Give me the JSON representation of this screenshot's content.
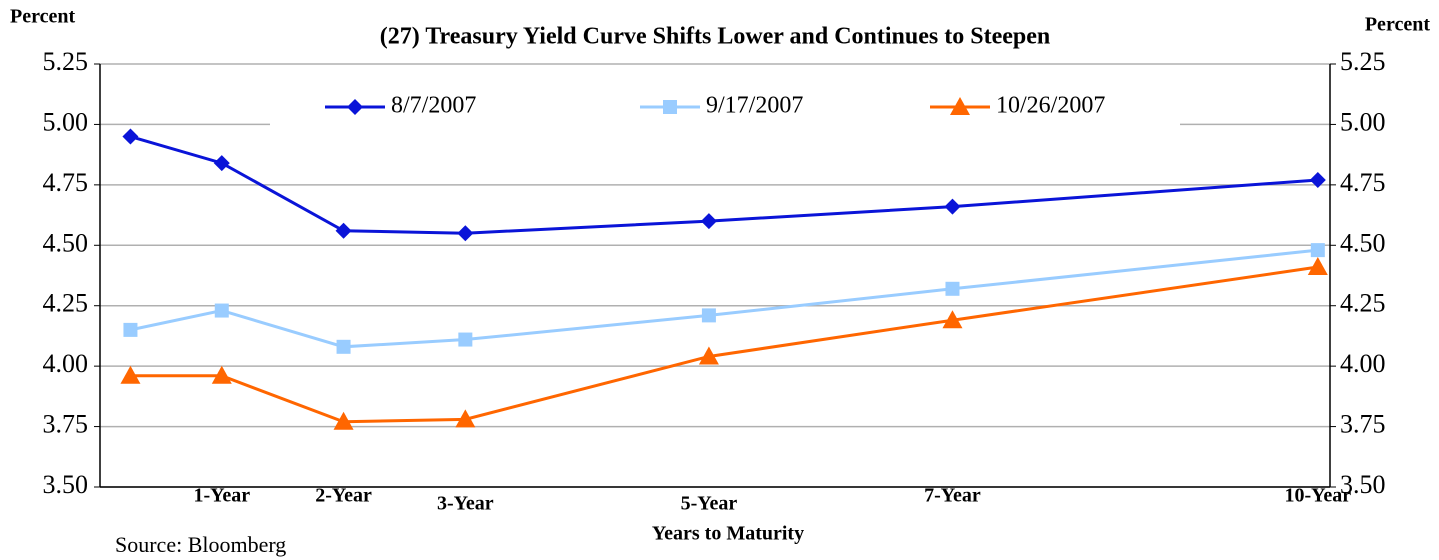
{
  "chart_data": {
    "type": "line",
    "title": "(27) Treasury Yield Curve Shifts Lower and Continues to Steepen",
    "y_label": "Percent",
    "y2_label": "Percent",
    "x_label": "Years to Maturity",
    "source": "Source: Bloomberg",
    "x": [
      0.25,
      1,
      2,
      3,
      5,
      7,
      10
    ],
    "xlim": [
      0,
      10.1
    ],
    "xticks": [
      {
        "value": 1,
        "label": "1-Year"
      },
      {
        "value": 2,
        "label": "2-Year"
      },
      {
        "value": 3,
        "label": "3-Year"
      },
      {
        "value": 5,
        "label": "5-Year"
      },
      {
        "value": 7,
        "label": "7-Year"
      },
      {
        "value": 10,
        "label": "10-Year"
      }
    ],
    "ylim": [
      3.5,
      5.25
    ],
    "yticks": [
      {
        "value": 3.5,
        "label": "3.50"
      },
      {
        "value": 3.75,
        "label": "3.75"
      },
      {
        "value": 4,
        "label": "4.00"
      },
      {
        "value": 4.25,
        "label": "4.25"
      },
      {
        "value": 4.5,
        "label": "4.50"
      },
      {
        "value": 4.75,
        "label": "4.75"
      },
      {
        "value": 5,
        "label": "5.00"
      },
      {
        "value": 5.25,
        "label": "5.25"
      }
    ],
    "y2lim": [
      3.5,
      5.25
    ],
    "y2ticks": [
      {
        "value": 3.5,
        "label": "3.50"
      },
      {
        "value": 3.75,
        "label": "3.75"
      },
      {
        "value": 4,
        "label": "4.00"
      },
      {
        "value": 4.25,
        "label": "4.25"
      },
      {
        "value": 4.5,
        "label": "4.50"
      },
      {
        "value": 4.75,
        "label": "4.75"
      },
      {
        "value": 5,
        "label": "5.00"
      },
      {
        "value": 5.25,
        "label": "5.25"
      }
    ],
    "grid": true,
    "legend": "top",
    "series": [
      {
        "name": "8/7/2007",
        "color": "#0a14d8",
        "marker": "diamond",
        "values": [
          4.95,
          4.84,
          4.56,
          4.55,
          4.6,
          4.66,
          4.77
        ]
      },
      {
        "name": "9/17/2007",
        "color": "#99ccff",
        "marker": "square",
        "values": [
          4.15,
          4.23,
          4.08,
          4.11,
          4.21,
          4.32,
          4.48
        ]
      },
      {
        "name": "10/26/2007",
        "color": "#ff6600",
        "marker": "triangle",
        "values": [
          3.96,
          3.96,
          3.77,
          3.78,
          4.04,
          4.19,
          4.41
        ]
      }
    ]
  }
}
